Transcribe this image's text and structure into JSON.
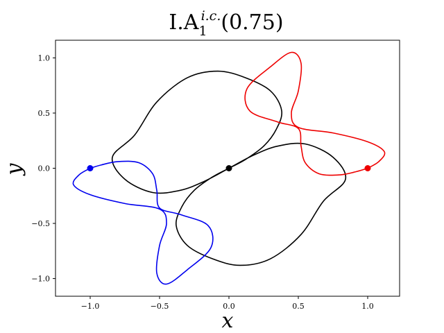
{
  "chart_data": {
    "type": "line",
    "title": {
      "main": "I.A",
      "subscript": "1",
      "superscript": "i.c.",
      "suffix": "(0.75)"
    },
    "xlabel": "x",
    "ylabel": "y",
    "xlim": [
      -1.25,
      1.23
    ],
    "ylim": [
      -1.16,
      1.16
    ],
    "x_ticks": [
      {
        "value": -1.0,
        "label": "−1.0"
      },
      {
        "value": -0.5,
        "label": "−0.5"
      },
      {
        "value": 0.0,
        "label": "0.0"
      },
      {
        "value": 0.5,
        "label": "0.5"
      },
      {
        "value": 1.0,
        "label": "1.0"
      }
    ],
    "y_ticks": [
      {
        "value": 1.0,
        "label": "1.0"
      },
      {
        "value": 0.5,
        "label": "0.5"
      },
      {
        "value": 0.0,
        "label": "0.0"
      },
      {
        "value": -0.5,
        "label": "−0.5"
      },
      {
        "value": -1.0,
        "label": "−1.0"
      }
    ],
    "grid": false,
    "legend": "none",
    "series": [
      {
        "color": "#000000",
        "points": [
          [
            0.0,
            0.0
          ],
          [
            0.12,
            0.08
          ],
          [
            0.25,
            0.2
          ],
          [
            0.34,
            0.35
          ],
          [
            0.38,
            0.52
          ],
          [
            0.3,
            0.7
          ],
          [
            0.12,
            0.82
          ],
          [
            -0.08,
            0.88
          ],
          [
            -0.3,
            0.82
          ],
          [
            -0.52,
            0.6
          ],
          [
            -0.68,
            0.3
          ],
          [
            -0.84,
            0.1
          ],
          [
            -0.75,
            -0.1
          ],
          [
            -0.55,
            -0.22
          ],
          [
            -0.35,
            -0.2
          ],
          [
            -0.18,
            -0.12
          ],
          [
            0.0,
            0.0
          ],
          [
            0.18,
            0.12
          ],
          [
            0.35,
            0.2
          ],
          [
            0.55,
            0.22
          ],
          [
            0.75,
            0.1
          ],
          [
            0.84,
            -0.1
          ],
          [
            0.68,
            -0.3
          ],
          [
            0.52,
            -0.6
          ],
          [
            0.3,
            -0.82
          ],
          [
            0.08,
            -0.88
          ],
          [
            -0.12,
            -0.82
          ],
          [
            -0.3,
            -0.7
          ],
          [
            -0.38,
            -0.52
          ],
          [
            -0.34,
            -0.35
          ],
          [
            -0.25,
            -0.2
          ],
          [
            -0.12,
            -0.08
          ],
          [
            0.0,
            0.0
          ]
        ]
      },
      {
        "color": "#ee0000",
        "points": [
          [
            1.0,
            0.0
          ],
          [
            1.08,
            0.06
          ],
          [
            1.12,
            0.15
          ],
          [
            1.0,
            0.24
          ],
          [
            0.75,
            0.32
          ],
          [
            0.5,
            0.37
          ],
          [
            0.45,
            0.5
          ],
          [
            0.5,
            0.7
          ],
          [
            0.52,
            0.95
          ],
          [
            0.45,
            1.05
          ],
          [
            0.3,
            0.92
          ],
          [
            0.13,
            0.72
          ],
          [
            0.15,
            0.52
          ],
          [
            0.35,
            0.42
          ],
          [
            0.5,
            0.36
          ],
          [
            0.52,
            0.2
          ],
          [
            0.55,
            0.05
          ],
          [
            0.65,
            -0.05
          ],
          [
            0.8,
            -0.06
          ],
          [
            0.92,
            -0.03
          ],
          [
            1.0,
            0.0
          ]
        ]
      },
      {
        "color": "#0000ee",
        "points": [
          [
            -1.0,
            0.0
          ],
          [
            -1.08,
            -0.06
          ],
          [
            -1.12,
            -0.15
          ],
          [
            -1.0,
            -0.24
          ],
          [
            -0.75,
            -0.32
          ],
          [
            -0.5,
            -0.37
          ],
          [
            -0.45,
            -0.5
          ],
          [
            -0.5,
            -0.7
          ],
          [
            -0.52,
            -0.95
          ],
          [
            -0.45,
            -1.05
          ],
          [
            -0.3,
            -0.92
          ],
          [
            -0.13,
            -0.72
          ],
          [
            -0.15,
            -0.52
          ],
          [
            -0.35,
            -0.42
          ],
          [
            -0.5,
            -0.36
          ],
          [
            -0.52,
            -0.2
          ],
          [
            -0.55,
            -0.05
          ],
          [
            -0.65,
            0.05
          ],
          [
            -0.8,
            0.06
          ],
          [
            -0.92,
            0.03
          ],
          [
            -1.0,
            0.0
          ]
        ]
      }
    ],
    "markers": [
      {
        "x": 0.0,
        "y": 0.0,
        "color": "#000000"
      },
      {
        "x": 1.0,
        "y": 0.0,
        "color": "#ee0000"
      },
      {
        "x": -1.0,
        "y": 0.0,
        "color": "#0000ee"
      }
    ]
  }
}
